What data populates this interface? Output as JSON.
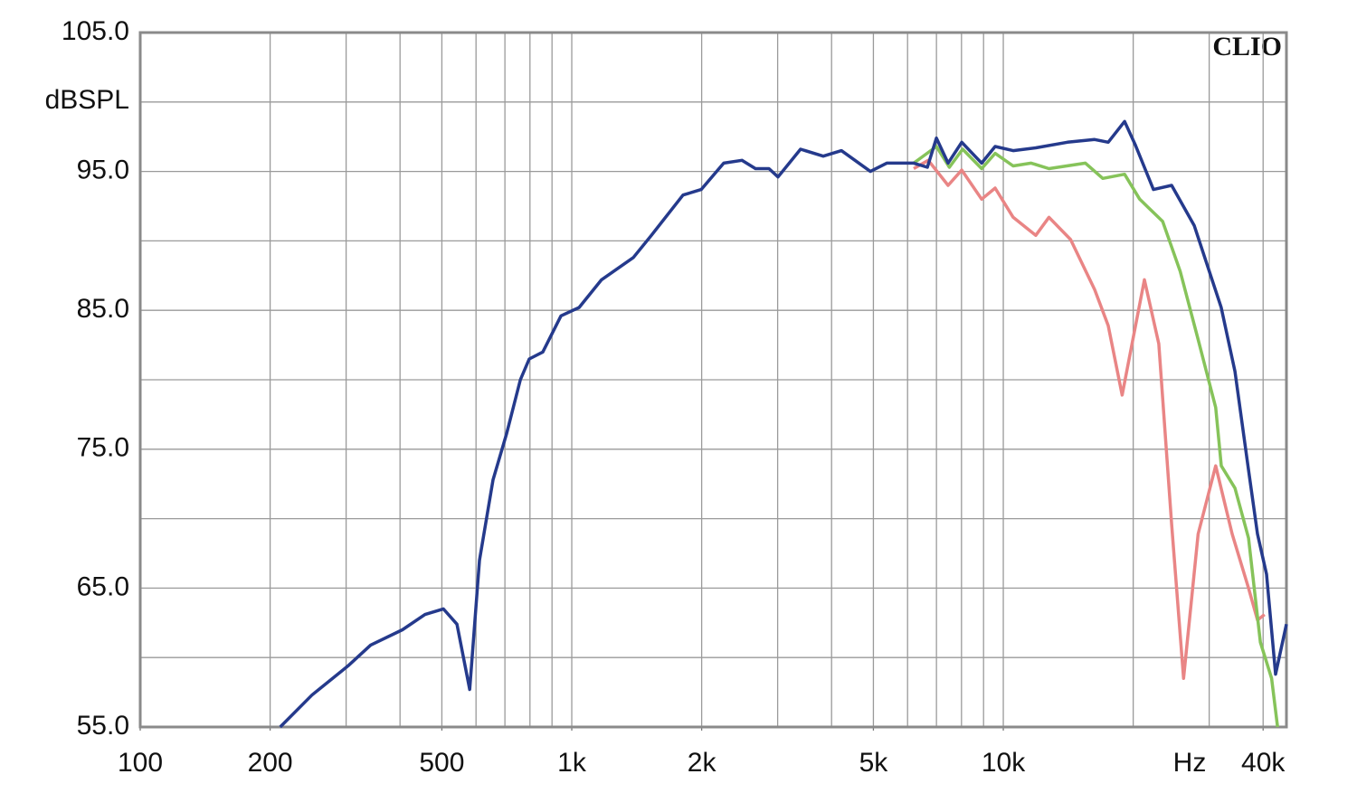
{
  "chart_data": {
    "type": "line",
    "watermark": "CLIO",
    "ylabel": "dBSPL",
    "xlabel": "Hz",
    "xscale": "log",
    "grid": true,
    "xlim": [
      100,
      45300
    ],
    "ylim": [
      55,
      105
    ],
    "xticks": [
      {
        "value": 100,
        "label": "100"
      },
      {
        "value": 200,
        "label": "200"
      },
      {
        "value": 500,
        "label": "500"
      },
      {
        "value": 1000,
        "label": "1k"
      },
      {
        "value": 2000,
        "label": "2k"
      },
      {
        "value": 5000,
        "label": "5k"
      },
      {
        "value": 10000,
        "label": "10k"
      },
      {
        "value": 40000,
        "label": "40k"
      }
    ],
    "xgrid": [
      100,
      200,
      300,
      400,
      500,
      600,
      700,
      800,
      900,
      1000,
      2000,
      3000,
      4000,
      5000,
      6000,
      7000,
      8000,
      9000,
      10000,
      20000,
      30000,
      40000
    ],
    "yticks": [
      {
        "value": 55,
        "label": "55.0"
      },
      {
        "value": 65,
        "label": "65.0"
      },
      {
        "value": 75,
        "label": "75.0"
      },
      {
        "value": 85,
        "label": "85.0"
      },
      {
        "value": 95,
        "label": "95.0"
      },
      {
        "value": 105,
        "label": "105.0"
      }
    ],
    "ygrid": [
      60,
      70,
      80,
      90,
      100
    ],
    "series": [
      {
        "color": "#253a8c",
        "x": [
          211,
          250,
          303,
          342,
          405,
          457,
          504,
          542,
          580,
          611,
          657,
          706,
          760,
          797,
          857,
          944,
          1040,
          1172,
          1389,
          1529,
          1811,
          1995,
          2250,
          2479,
          2665,
          2864,
          3005,
          3390,
          3826,
          4215,
          4921,
          5370,
          6200,
          6668,
          6998,
          7448,
          8011,
          8909,
          9573,
          10540,
          11890,
          14080,
          16280,
          17500,
          19100,
          20230,
          22280,
          24550,
          27700,
          31990,
          34420,
          37000,
          38810,
          40740,
          42760,
          45300
        ],
        "values": [
          55.0,
          57.3,
          59.4,
          60.9,
          62.0,
          63.1,
          63.5,
          62.4,
          57.7,
          67.0,
          72.8,
          76.1,
          80.0,
          81.5,
          82.0,
          84.6,
          85.2,
          87.2,
          88.8,
          90.4,
          93.3,
          93.7,
          95.6,
          95.8,
          95.2,
          95.2,
          94.6,
          96.6,
          96.1,
          96.5,
          95.0,
          95.6,
          95.6,
          95.3,
          97.4,
          95.6,
          97.1,
          95.6,
          96.8,
          96.5,
          96.7,
          97.1,
          97.3,
          97.1,
          98.6,
          96.9,
          93.7,
          94.0,
          91.1,
          85.2,
          80.6,
          73.5,
          68.9,
          66.0,
          58.8,
          62.4
        ]
      },
      {
        "color": "#86c35a",
        "x": [
          6200,
          6998,
          7500,
          8050,
          8909,
          9573,
          10540,
          11600,
          12760,
          15500,
          17000,
          19100,
          20700,
          23400,
          25700,
          28280,
          31050,
          32000,
          34420,
          37000,
          39420,
          41850,
          43200
        ],
        "values": [
          95.6,
          96.8,
          95.3,
          96.6,
          95.2,
          96.3,
          95.4,
          95.6,
          95.2,
          95.6,
          94.5,
          94.8,
          93.0,
          91.4,
          87.8,
          82.9,
          78.0,
          73.8,
          72.2,
          68.6,
          61.1,
          58.5,
          55.0
        ]
      },
      {
        "color": "#e98585",
        "x": [
          6200,
          6700,
          7448,
          8011,
          8909,
          9573,
          10540,
          11890,
          12760,
          14320,
          16280,
          17500,
          18850,
          21230,
          22930,
          24550,
          26170,
          28280,
          31050,
          33910,
          37000,
          38810,
          40310
        ],
        "values": [
          95.2,
          95.8,
          94.0,
          95.1,
          93.0,
          93.8,
          91.7,
          90.4,
          91.7,
          90.1,
          86.5,
          83.9,
          78.9,
          87.2,
          82.6,
          69.6,
          58.5,
          68.9,
          73.8,
          68.9,
          65.0,
          62.7,
          63.1
        ]
      }
    ]
  }
}
